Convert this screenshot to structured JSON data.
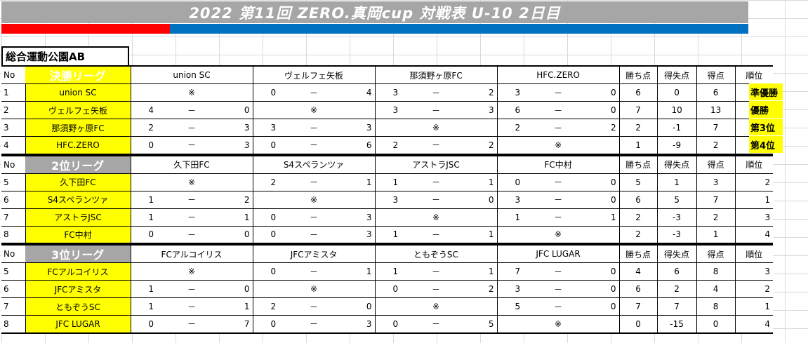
{
  "title": "2022 第11回 ZERO.真岡cup 対戦表 U-10 2日目",
  "venue": "総合運動公園AB",
  "headers": {
    "no": "No",
    "wins": "勝ち点",
    "diff": "得失点",
    "goals": "得点",
    "rank": "順位"
  },
  "dash": "－",
  "mark": "※",
  "leagues": [
    {
      "name": "決勝リーグ",
      "opponents": [
        "union  SC",
        "ヴェルフェ矢板",
        "那須野ヶ原FC",
        "HFC.ZERO"
      ],
      "rows": [
        {
          "no": "1",
          "team": "union  SC",
          "cells": [
            null,
            [
              "0",
              "4"
            ],
            [
              "3",
              "2"
            ],
            [
              "3",
              "0"
            ]
          ],
          "pts": "6",
          "diff": "0",
          "goals": "6",
          "rank": "2",
          "finish": "準優勝"
        },
        {
          "no": "2",
          "team": "ヴェルフェ矢板",
          "cells": [
            [
              "4",
              "0"
            ],
            null,
            [
              "3",
              "3"
            ],
            [
              "6",
              "0"
            ]
          ],
          "pts": "7",
          "diff": "10",
          "goals": "13",
          "rank": "1",
          "finish": "優勝"
        },
        {
          "no": "3",
          "team": "那須野ヶ原FC",
          "cells": [
            [
              "2",
              "3"
            ],
            [
              "3",
              "3"
            ],
            null,
            [
              "2",
              "2"
            ]
          ],
          "pts": "2",
          "diff": "-1",
          "goals": "7",
          "rank": "3",
          "finish": "第3位"
        },
        {
          "no": "4",
          "team": "HFC.ZERO",
          "cells": [
            [
              "0",
              "3"
            ],
            [
              "0",
              "6"
            ],
            [
              "2",
              "2"
            ],
            null
          ],
          "pts": "1",
          "diff": "-9",
          "goals": "2",
          "rank": "4",
          "finish": "第4位"
        }
      ]
    },
    {
      "name": "2位リーグ",
      "opponents": [
        "久下田FC",
        "S4スペランツァ",
        "アストラJSC",
        "FC中村"
      ],
      "rows": [
        {
          "no": "5",
          "team": "久下田FC",
          "cells": [
            null,
            [
              "2",
              "1"
            ],
            [
              "1",
              "1"
            ],
            [
              "0",
              "0"
            ]
          ],
          "pts": "5",
          "diff": "1",
          "goals": "3",
          "rank": "2"
        },
        {
          "no": "6",
          "team": "S4スペランツァ",
          "cells": [
            [
              "1",
              "2"
            ],
            null,
            [
              "3",
              "0"
            ],
            [
              "3",
              "0"
            ]
          ],
          "pts": "6",
          "diff": "5",
          "goals": "7",
          "rank": "1"
        },
        {
          "no": "7",
          "team": "アストラJSC",
          "cells": [
            [
              "1",
              "1"
            ],
            [
              "0",
              "3"
            ],
            null,
            [
              "1",
              "1"
            ]
          ],
          "pts": "2",
          "diff": "-3",
          "goals": "2",
          "rank": "3"
        },
        {
          "no": "8",
          "team": "FC中村",
          "cells": [
            [
              "0",
              "0"
            ],
            [
              "0",
              "3"
            ],
            [
              "1",
              "1"
            ],
            null
          ],
          "pts": "2",
          "diff": "-3",
          "goals": "1",
          "rank": "4"
        }
      ]
    },
    {
      "name": "3位リーグ",
      "opponents": [
        "FCアルコイリス",
        "JFCアミスタ",
        "ともぞうSC",
        "JFC  LUGAR"
      ],
      "rows": [
        {
          "no": "5",
          "team": "FCアルコイリス",
          "cells": [
            null,
            [
              "0",
              "1"
            ],
            [
              "1",
              "1"
            ],
            [
              "7",
              "0"
            ]
          ],
          "pts": "4",
          "diff": "6",
          "goals": "8",
          "rank": "3"
        },
        {
          "no": "6",
          "team": "JFCアミスタ",
          "cells": [
            [
              "1",
              "0"
            ],
            null,
            [
              "0",
              "2"
            ],
            [
              "3",
              "0"
            ]
          ],
          "pts": "6",
          "diff": "2",
          "goals": "4",
          "rank": "2"
        },
        {
          "no": "7",
          "team": "ともぞうSC",
          "cells": [
            [
              "1",
              "1"
            ],
            [
              "2",
              "0"
            ],
            null,
            [
              "5",
              "0"
            ]
          ],
          "pts": "7",
          "diff": "7",
          "goals": "8",
          "rank": "1"
        },
        {
          "no": "8",
          "team": "JFC  LUGAR",
          "cells": [
            [
              "0",
              "7"
            ],
            [
              "0",
              "3"
            ],
            [
              "0",
              "5"
            ],
            null
          ],
          "pts": "0",
          "diff": "-15",
          "goals": "0",
          "rank": "4"
        }
      ]
    }
  ]
}
